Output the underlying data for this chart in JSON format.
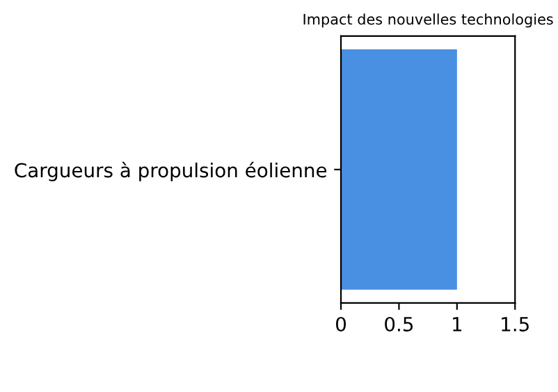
{
  "chart_data": {
    "type": "bar",
    "orientation": "horizontal",
    "title": "Impact des nouvelles technologies",
    "categories": [
      "Cargueurs à propulsion éolienne"
    ],
    "values": [
      1
    ],
    "color": "#4a90e2",
    "xlim": [
      0,
      1.5
    ],
    "xticks": [
      0,
      0.5,
      1,
      1.5
    ],
    "grid": false,
    "legend": false
  }
}
